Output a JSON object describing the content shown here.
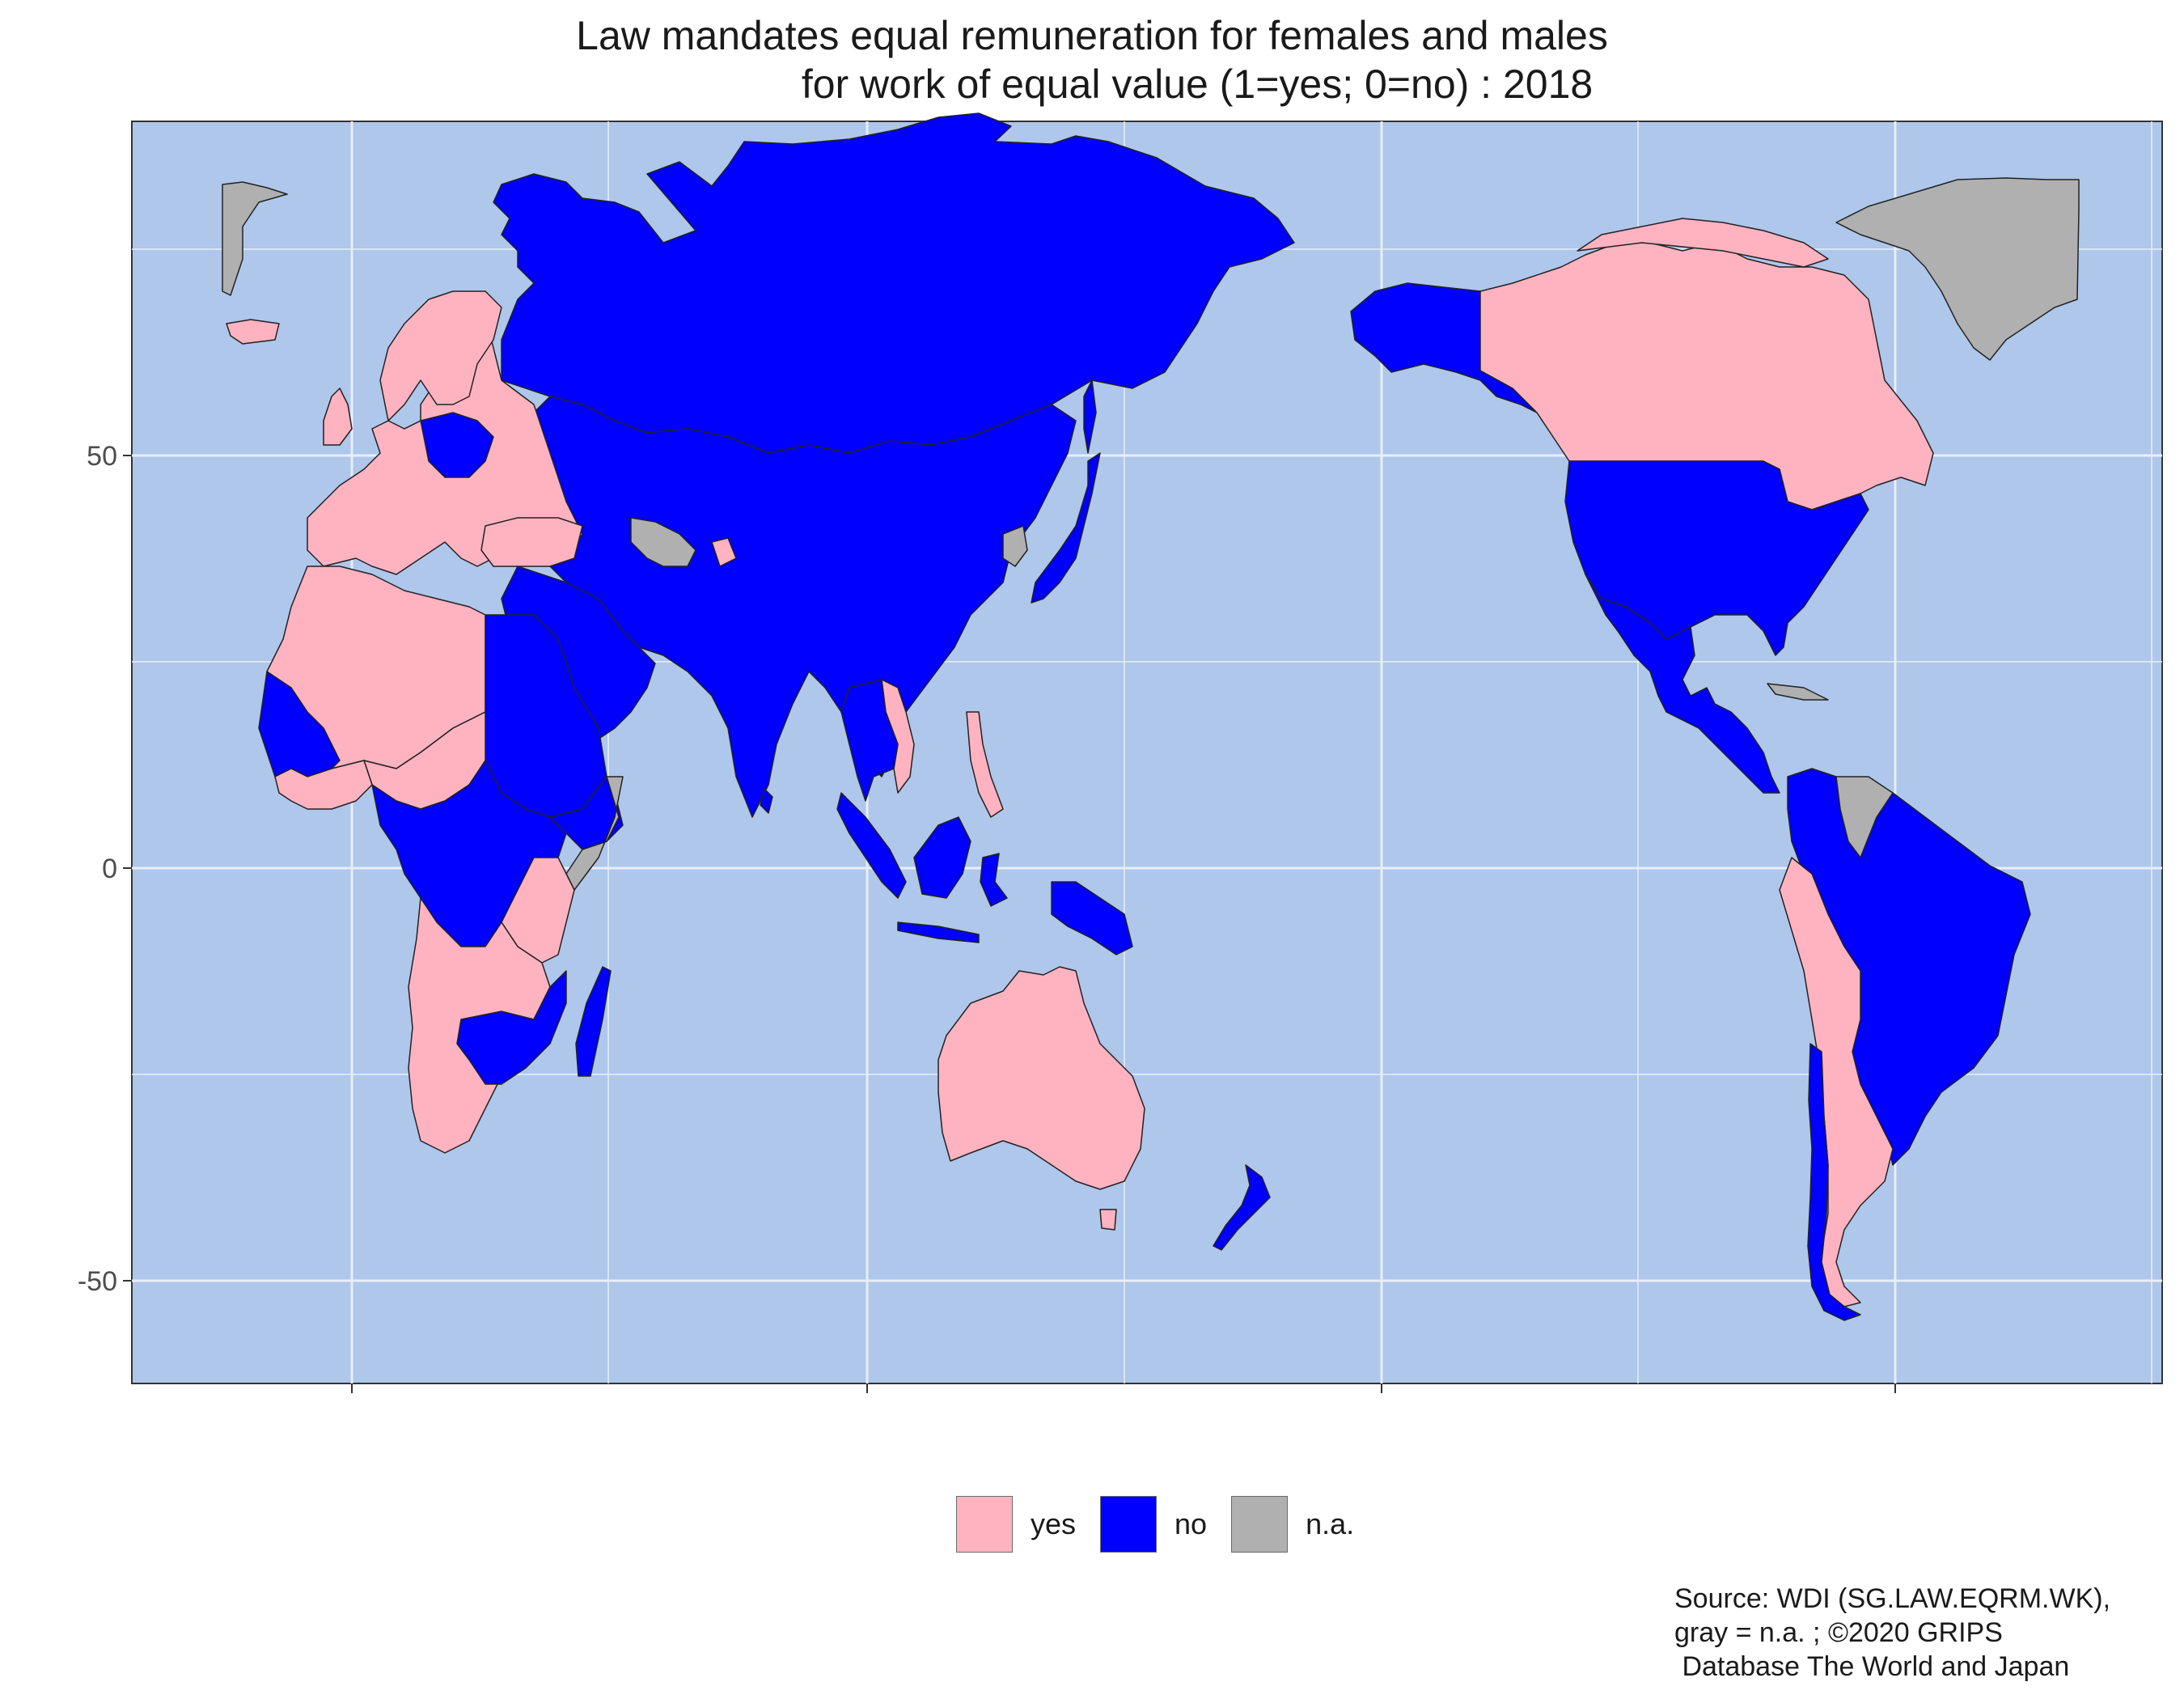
{
  "title": {
    "line1": "Law mandates equal remuneration for females and males",
    "line2": "for work of equal value (1=yes; 0=no) : 2018"
  },
  "axes": {
    "y_ticks": [
      "50",
      "0",
      "-50"
    ]
  },
  "legend": {
    "items": [
      {
        "label": "yes",
        "color": "#ffb3c1"
      },
      {
        "label": "no",
        "color": "#0000ff"
      },
      {
        "label": "n.a.",
        "color": "#b0b0b0"
      }
    ]
  },
  "colors": {
    "ocean": "#aec7eb",
    "gridline": "#e6ecf6",
    "border": "#222222"
  },
  "source": {
    "line1": "Source: WDI (SG.LAW.EQRM.WK),",
    "line2": "gray = n.a. ; ©2020 GRIPS",
    "line3": " Database The World and Japan"
  }
}
